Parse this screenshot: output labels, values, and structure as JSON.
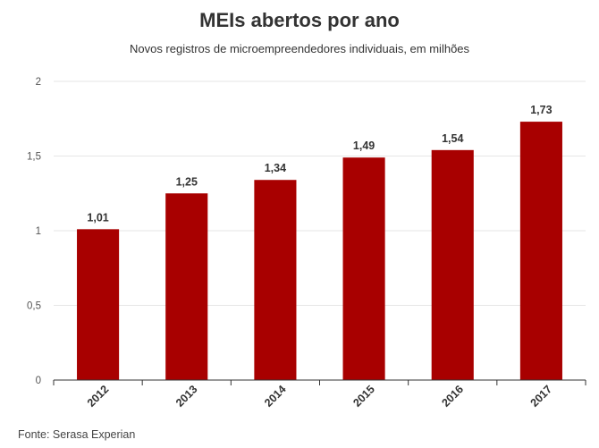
{
  "chart_data": {
    "type": "bar",
    "title": "MEIs abertos por ano",
    "subtitle": "Novos registros de microempreendedores individuais, em milhões",
    "categories": [
      "2012",
      "2013",
      "2014",
      "2015",
      "2016",
      "2017"
    ],
    "values": [
      1.01,
      1.25,
      1.34,
      1.49,
      1.54,
      1.73
    ],
    "value_labels": [
      "1,01",
      "1,25",
      "1,34",
      "1,49",
      "1,54",
      "1,73"
    ],
    "y_ticks": [
      0,
      0.5,
      1,
      1.5,
      2
    ],
    "y_tick_labels": [
      "0",
      "0,5",
      "1",
      "1,5",
      "2"
    ],
    "ylim": [
      0,
      2
    ],
    "xlabel": "",
    "ylabel": "",
    "grid": true,
    "bar_color": "#a80000",
    "source": "Fonte: Serasa Experian"
  }
}
